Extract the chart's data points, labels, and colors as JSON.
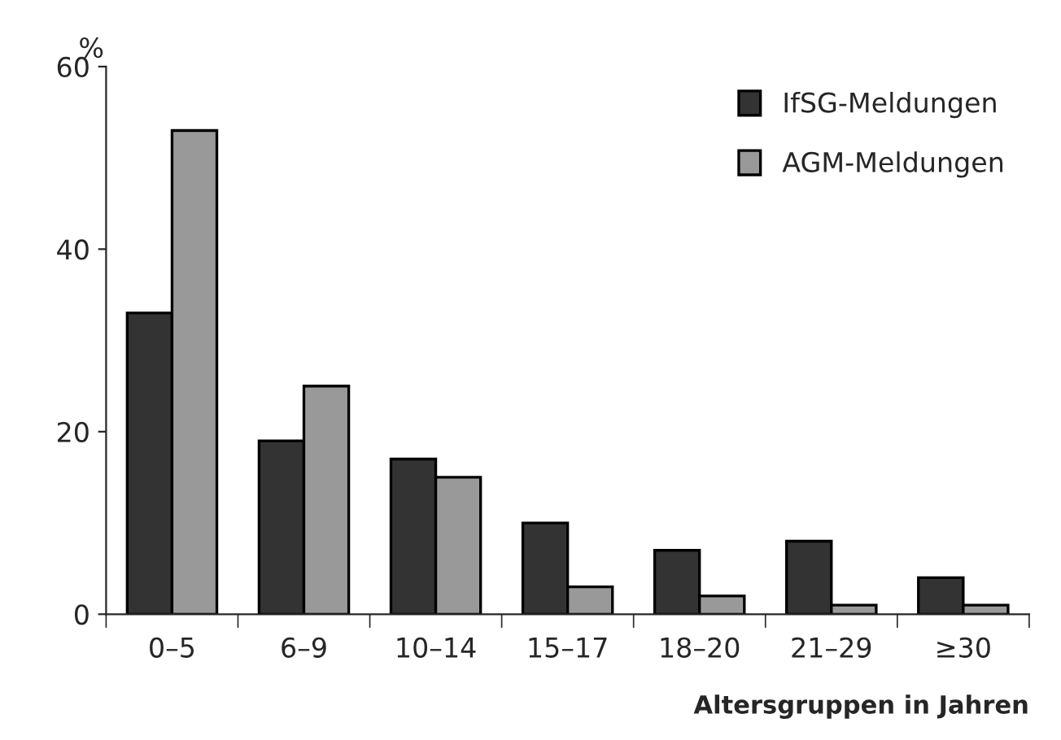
{
  "chart_data": {
    "type": "bar",
    "ylabel": "%",
    "xlabel": "Altersgruppen in Jahren",
    "categories": [
      "0–5",
      "6–9",
      "10–14",
      "15–17",
      "18–20",
      "21–29",
      "≥30"
    ],
    "series": [
      {
        "name": "IfSG-Meldungen",
        "color": "#333333",
        "values": [
          33,
          19,
          17,
          10,
          7,
          8,
          4
        ]
      },
      {
        "name": "AGM-Meldungen",
        "color": "#999999",
        "values": [
          53,
          25,
          15,
          3,
          2,
          1,
          1
        ]
      }
    ],
    "ylim": [
      0,
      60
    ],
    "yticks": [
      0,
      20,
      40,
      60
    ],
    "grid": false,
    "legend": "top right"
  }
}
